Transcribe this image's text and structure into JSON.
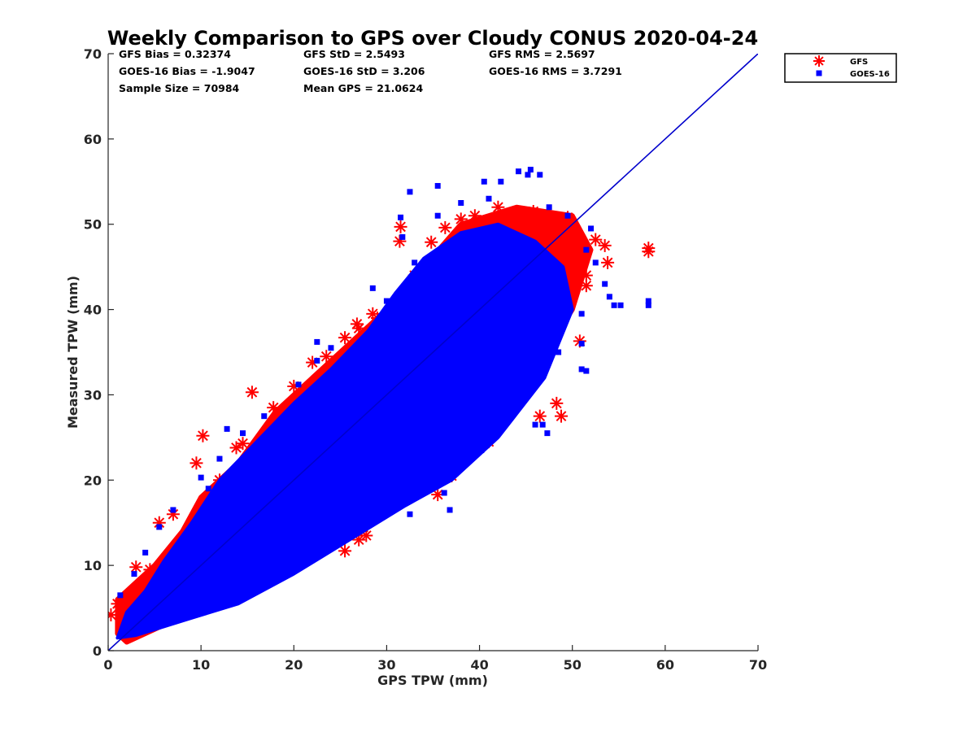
{
  "chart_data": {
    "type": "scatter",
    "title": "Weekly Comparison to GPS over Cloudy CONUS 2020-04-24",
    "xlabel": "GPS TPW (mm)",
    "ylabel": "Measured TPW (mm)",
    "xlim": [
      0,
      70
    ],
    "ylim": [
      0,
      70
    ],
    "xticks": [
      "0",
      "10",
      "20",
      "30",
      "40",
      "50",
      "60",
      "70"
    ],
    "yticks": [
      "0",
      "10",
      "20",
      "30",
      "40",
      "50",
      "60",
      "70"
    ],
    "grid": false,
    "legend_position": "outside-top-right",
    "stats": [
      [
        "GFS Bias = 0.32374",
        "GFS StD = 2.5493",
        "GFS RMS = 2.5697"
      ],
      [
        "GOES-16 Bias = -1.9047",
        "GOES-16 StD = 3.206",
        "GOES-16 RMS = 3.7291"
      ],
      [
        "Sample Size = 70984",
        "Mean GPS = 21.0624"
      ]
    ],
    "one_to_one_line": {
      "x": [
        0,
        70
      ],
      "y": [
        0,
        70
      ],
      "color": "#0000cc"
    },
    "series": [
      {
        "name": "GFS",
        "marker": "asterisk",
        "color": "#ff0000",
        "cloud": [
          [
            1,
            2
          ],
          [
            1,
            6
          ],
          [
            3,
            8
          ],
          [
            5,
            10
          ],
          [
            8,
            14
          ],
          [
            10,
            18
          ],
          [
            14,
            22
          ],
          [
            18,
            28
          ],
          [
            22,
            32
          ],
          [
            26,
            36
          ],
          [
            30,
            40
          ],
          [
            34,
            45
          ],
          [
            38,
            50
          ],
          [
            44,
            52
          ],
          [
            50,
            51
          ],
          [
            52,
            47
          ],
          [
            50,
            40
          ],
          [
            46,
            33
          ],
          [
            42,
            26
          ],
          [
            36,
            21
          ],
          [
            30,
            17
          ],
          [
            24,
            13
          ],
          [
            18,
            8
          ],
          [
            12,
            5
          ],
          [
            6,
            3
          ],
          [
            2,
            1
          ]
        ],
        "outliers": [
          [
            10.2,
            25.2
          ],
          [
            15.5,
            30.3
          ],
          [
            14.5,
            24.3
          ],
          [
            12,
            20
          ],
          [
            31.5,
            49.7
          ],
          [
            31.4,
            48
          ],
          [
            34.8,
            47.9
          ],
          [
            36.3,
            49.6
          ],
          [
            38,
            50.6
          ],
          [
            42,
            52
          ],
          [
            44.8,
            50.2
          ],
          [
            47.5,
            49.5
          ],
          [
            52.5,
            48.2
          ],
          [
            53.5,
            47.5
          ],
          [
            53.8,
            45.5
          ],
          [
            58.2,
            47.2
          ],
          [
            58.2,
            46.8
          ],
          [
            51.5,
            44
          ],
          [
            50.8,
            36.3
          ],
          [
            48.3,
            29
          ],
          [
            48.8,
            27.5
          ],
          [
            46.5,
            27.5
          ],
          [
            46,
            33
          ],
          [
            41.5,
            31
          ],
          [
            42.8,
            30.5
          ],
          [
            43.5,
            29
          ],
          [
            38.5,
            23.5
          ],
          [
            41,
            24.5
          ],
          [
            37,
            20.5
          ],
          [
            35.5,
            18.3
          ],
          [
            36.5,
            22
          ],
          [
            27.3,
            14
          ],
          [
            27.8,
            13.5
          ],
          [
            27,
            13
          ],
          [
            25.5,
            11.7
          ],
          [
            31,
            20.5
          ],
          [
            33,
            23
          ],
          [
            30,
            21
          ],
          [
            25.5,
            36.7
          ],
          [
            27,
            37.8
          ],
          [
            29,
            39
          ],
          [
            22,
            33.8
          ],
          [
            17.8,
            28.5
          ],
          [
            9.5,
            22
          ],
          [
            5.5,
            15
          ],
          [
            3,
            9.8
          ],
          [
            1,
            5.5
          ],
          [
            0.3,
            4.2
          ],
          [
            4.5,
            9.5
          ],
          [
            20,
            31
          ],
          [
            23.5,
            34.5
          ],
          [
            33,
            44
          ],
          [
            39.5,
            51
          ],
          [
            45.8,
            51.5
          ],
          [
            49.5,
            50.8
          ],
          [
            51.5,
            42.8
          ],
          [
            28.5,
            39.5
          ],
          [
            26.8,
            38.3
          ],
          [
            13.8,
            23.8
          ],
          [
            7,
            16
          ]
        ]
      },
      {
        "name": "GOES-16",
        "marker": "square",
        "color": "#0000ff",
        "cloud": [
          [
            1,
            1.5
          ],
          [
            2,
            4.5
          ],
          [
            4,
            7
          ],
          [
            6,
            10.5
          ],
          [
            9,
            15
          ],
          [
            12,
            20
          ],
          [
            16,
            24.5
          ],
          [
            20,
            29
          ],
          [
            24,
            33
          ],
          [
            28,
            37.5
          ],
          [
            31,
            42
          ],
          [
            34,
            46
          ],
          [
            38,
            49
          ],
          [
            42,
            50
          ],
          [
            46,
            48
          ],
          [
            49,
            45
          ],
          [
            50,
            40
          ],
          [
            47,
            32
          ],
          [
            42,
            25
          ],
          [
            37,
            20
          ],
          [
            32,
            17
          ],
          [
            26,
            13
          ],
          [
            20,
            9
          ],
          [
            14,
            5.5
          ],
          [
            8,
            3.5
          ],
          [
            3,
            1.8
          ]
        ],
        "outliers": [
          [
            44.2,
            56.2
          ],
          [
            45.2,
            55.8
          ],
          [
            46.5,
            55.8
          ],
          [
            45.5,
            56.4
          ],
          [
            40.5,
            55
          ],
          [
            42.3,
            55
          ],
          [
            35.5,
            54.5
          ],
          [
            32.5,
            53.8
          ],
          [
            31.5,
            50.8
          ],
          [
            31.7,
            48.5
          ],
          [
            51.5,
            47
          ],
          [
            52.5,
            45.5
          ],
          [
            53.5,
            43
          ],
          [
            54,
            41.5
          ],
          [
            54.5,
            40.5
          ],
          [
            58.2,
            41
          ],
          [
            58.2,
            40.5
          ],
          [
            55.2,
            40.5
          ],
          [
            51,
            39.5
          ],
          [
            51,
            33
          ],
          [
            51.5,
            32.8
          ],
          [
            46,
            26.5
          ],
          [
            47.3,
            25.5
          ],
          [
            46.8,
            26.5
          ],
          [
            40,
            25
          ],
          [
            39.5,
            27.8
          ],
          [
            42,
            26
          ],
          [
            40.2,
            23.5
          ],
          [
            34.5,
            23.5
          ],
          [
            33.8,
            22
          ],
          [
            38.5,
            22
          ],
          [
            36.8,
            16.5
          ],
          [
            32.5,
            16
          ],
          [
            29.5,
            17.8
          ],
          [
            28.8,
            20.5
          ],
          [
            30.5,
            19.5
          ],
          [
            30.2,
            18.8
          ],
          [
            20.5,
            14
          ],
          [
            24.8,
            19
          ],
          [
            21.5,
            18
          ],
          [
            22.5,
            36.2
          ],
          [
            24,
            35.5
          ],
          [
            22.5,
            34
          ],
          [
            20.5,
            31.2
          ],
          [
            16.8,
            27.5
          ],
          [
            14.5,
            25.5
          ],
          [
            12.8,
            26
          ],
          [
            12,
            22.5
          ],
          [
            10.8,
            19
          ],
          [
            10,
            20.3
          ],
          [
            7,
            16.5
          ],
          [
            5.5,
            14.5
          ],
          [
            4,
            11.5
          ],
          [
            2.8,
            9
          ],
          [
            1.3,
            6.5
          ],
          [
            33,
            45.5
          ],
          [
            28.5,
            42.5
          ],
          [
            30,
            41
          ],
          [
            35.5,
            51
          ],
          [
            38,
            52.5
          ],
          [
            41,
            53
          ],
          [
            47.5,
            52
          ],
          [
            49.5,
            51
          ],
          [
            52,
            49.5
          ],
          [
            51,
            36
          ],
          [
            48.5,
            35
          ],
          [
            43,
            28
          ],
          [
            36.2,
            18.5
          ],
          [
            18,
            13
          ],
          [
            15,
            9.5
          ],
          [
            11.5,
            7
          ],
          [
            8,
            5.5
          ]
        ]
      }
    ]
  }
}
